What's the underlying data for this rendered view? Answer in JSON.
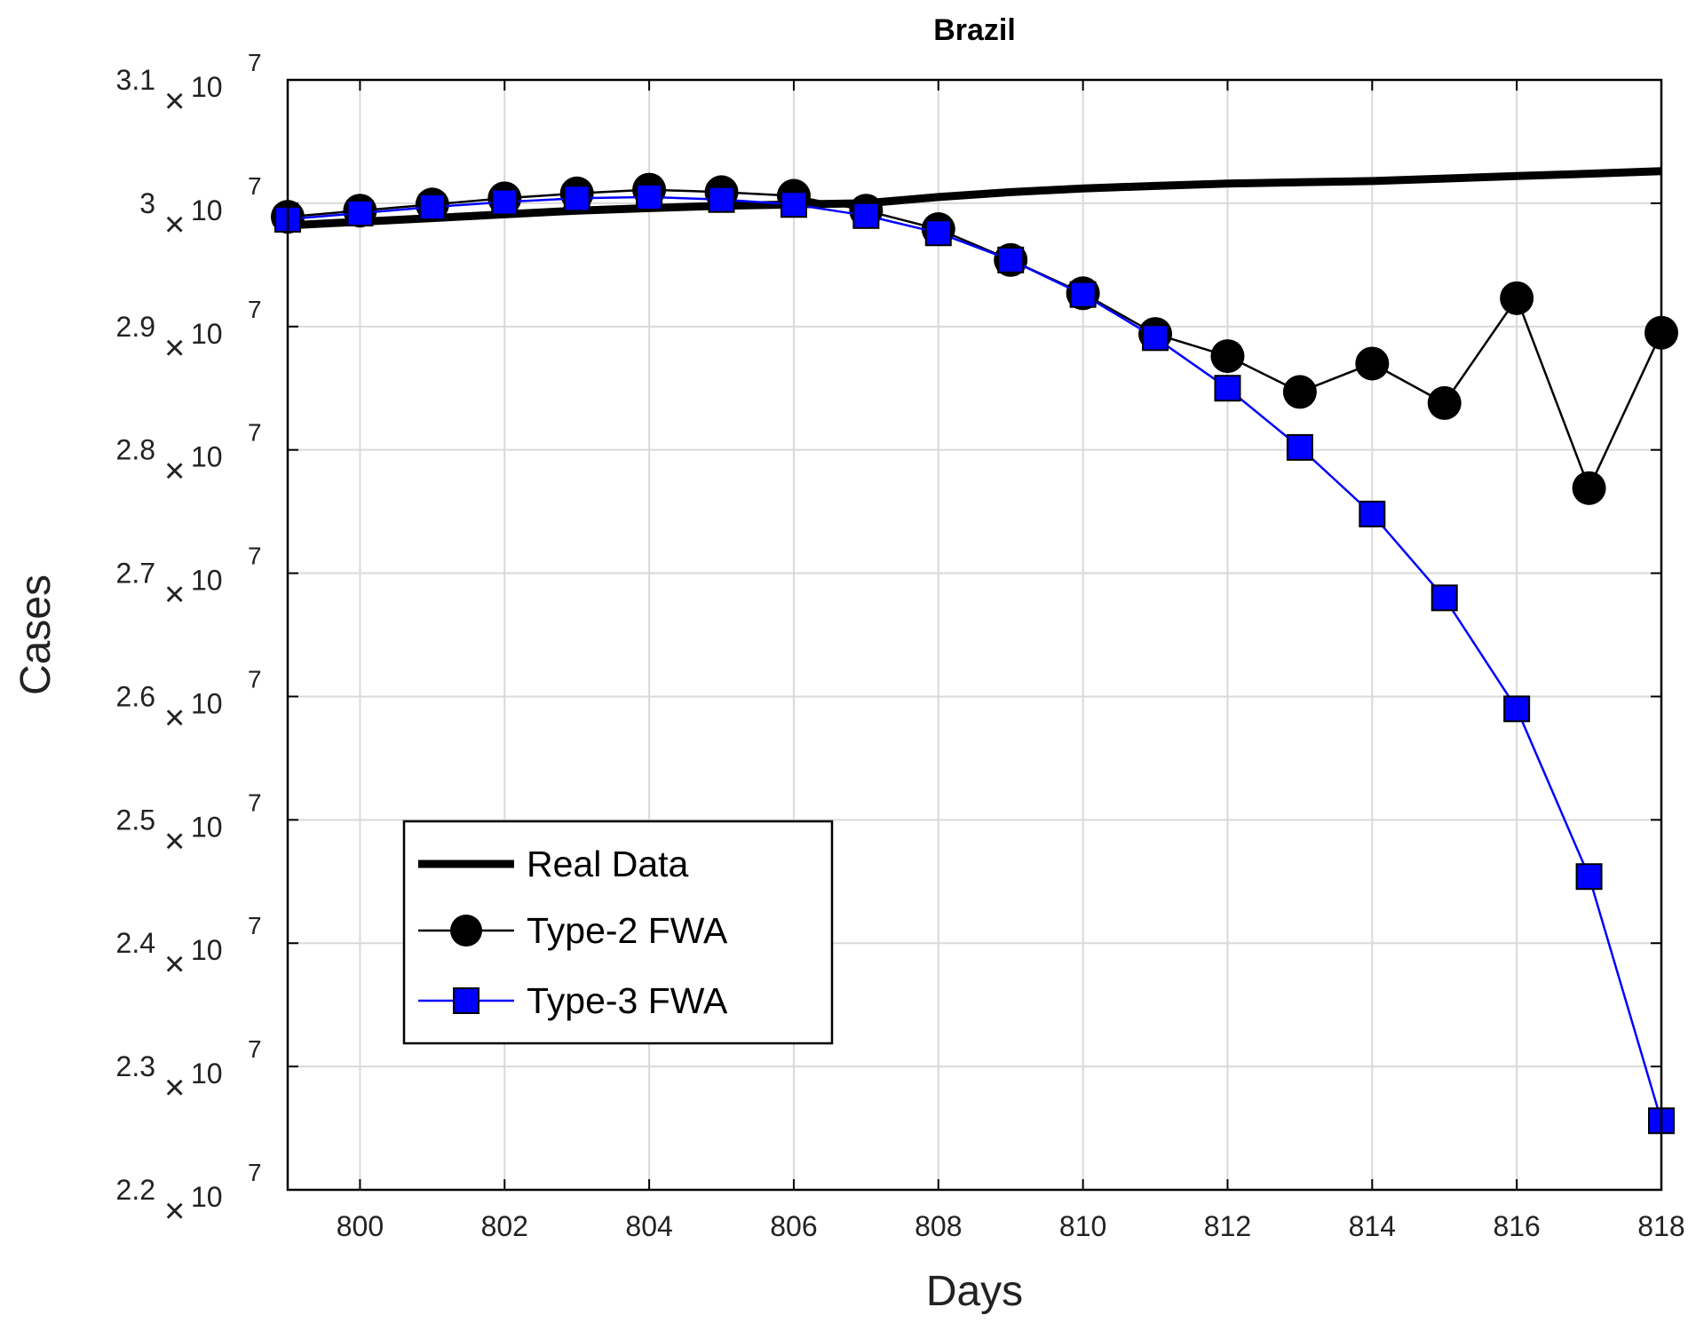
{
  "chart_data": {
    "type": "line",
    "title": "Brazil",
    "xlabel": "Days",
    "ylabel": "Cases",
    "xlim": [
      799,
      818
    ],
    "ylim": [
      22000000,
      31000000
    ],
    "x_ticks": [
      800,
      802,
      804,
      806,
      808,
      810,
      812,
      814,
      816,
      818
    ],
    "y_ticks": [
      {
        "value": 22000000,
        "mantissa": "2.2",
        "times": "×",
        "base": "10",
        "exp": "7"
      },
      {
        "value": 23000000,
        "mantissa": "2.3",
        "times": "×",
        "base": "10",
        "exp": "7"
      },
      {
        "value": 24000000,
        "mantissa": "2.4",
        "times": "×",
        "base": "10",
        "exp": "7"
      },
      {
        "value": 25000000,
        "mantissa": "2.5",
        "times": "×",
        "base": "10",
        "exp": "7"
      },
      {
        "value": 26000000,
        "mantissa": "2.6",
        "times": "×",
        "base": "10",
        "exp": "7"
      },
      {
        "value": 27000000,
        "mantissa": "2.7",
        "times": "×",
        "base": "10",
        "exp": "7"
      },
      {
        "value": 28000000,
        "mantissa": "2.8",
        "times": "×",
        "base": "10",
        "exp": "7"
      },
      {
        "value": 29000000,
        "mantissa": "2.9",
        "times": "×",
        "base": "10",
        "exp": "7"
      },
      {
        "value": 30000000,
        "mantissa": "3",
        "times": "×",
        "base": "10",
        "exp": "7"
      },
      {
        "value": 31000000,
        "mantissa": "3.1",
        "times": "×",
        "base": "10",
        "exp": "7"
      }
    ],
    "grid": true,
    "legend_position": "lower-left",
    "series": [
      {
        "name": "Real Data",
        "color": "#000000",
        "marker": "none",
        "x": [
          799,
          800,
          801,
          802,
          803,
          804,
          805,
          806,
          807,
          808,
          809,
          810,
          811,
          812,
          813,
          814,
          815,
          816,
          817,
          818
        ],
        "y": [
          29820000,
          29850000,
          29880000,
          29910000,
          29940000,
          29960000,
          29980000,
          29990000,
          30000000,
          30050000,
          30090000,
          30120000,
          30140000,
          30160000,
          30170000,
          30180000,
          30200000,
          30220000,
          30240000,
          30260000
        ]
      },
      {
        "name": "Type-2 FWA",
        "color": "#000000",
        "marker": "circle",
        "x": [
          799,
          800,
          801,
          802,
          803,
          804,
          805,
          806,
          807,
          808,
          809,
          810,
          811,
          812,
          813,
          814,
          815,
          816,
          817,
          818
        ],
        "y": [
          29890000,
          29940000,
          29990000,
          30040000,
          30080000,
          30110000,
          30090000,
          30060000,
          29940000,
          29790000,
          29540000,
          29270000,
          28940000,
          28760000,
          28470000,
          28700000,
          28380000,
          29230000,
          27690000,
          28950000
        ]
      },
      {
        "name": "Type-3 FWA",
        "color": "#0000ff",
        "marker": "square",
        "x": [
          799,
          800,
          801,
          802,
          803,
          804,
          805,
          806,
          807,
          808,
          809,
          810,
          811,
          812,
          813,
          814,
          815,
          816,
          817,
          818
        ],
        "y": [
          29870000,
          29920000,
          29970000,
          30010000,
          30040000,
          30050000,
          30030000,
          29990000,
          29900000,
          29760000,
          29540000,
          29260000,
          28910000,
          28500000,
          28020000,
          27480000,
          26800000,
          25900000,
          24540000,
          22560000
        ]
      }
    ]
  }
}
